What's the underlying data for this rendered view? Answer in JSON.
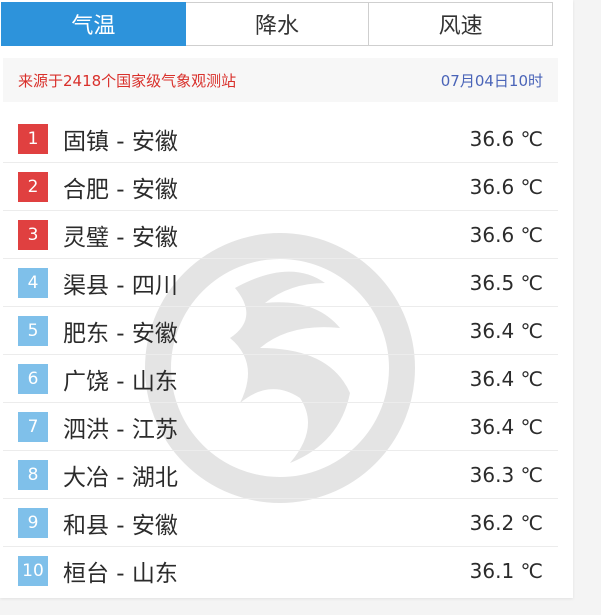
{
  "tabs": [
    {
      "label": "气温",
      "active": true
    },
    {
      "label": "降水",
      "active": false
    },
    {
      "label": "风速",
      "active": false
    }
  ],
  "info": {
    "source": "来源于2418个国家级气象观测站",
    "time": "07月04日10时"
  },
  "colors": {
    "accent": "#2d93db",
    "top3_badge": "#e04040",
    "other_badge": "#7fc0ea",
    "source_text": "#d9302b",
    "time_text": "#4a64b8"
  },
  "unit": "℃",
  "rows": [
    {
      "rank": "1",
      "name": "固镇 - 安徽",
      "temp": "36.6 ℃"
    },
    {
      "rank": "2",
      "name": "合肥 - 安徽",
      "temp": "36.6 ℃"
    },
    {
      "rank": "3",
      "name": "灵璧 - 安徽",
      "temp": "36.6 ℃"
    },
    {
      "rank": "4",
      "name": "渠县 - 四川",
      "temp": "36.5 ℃"
    },
    {
      "rank": "5",
      "name": "肥东 - 安徽",
      "temp": "36.4 ℃"
    },
    {
      "rank": "6",
      "name": "广饶 - 山东",
      "temp": "36.4 ℃"
    },
    {
      "rank": "7",
      "name": "泗洪 - 江苏",
      "temp": "36.4 ℃"
    },
    {
      "rank": "8",
      "name": "大冶 - 湖北",
      "temp": "36.3 ℃"
    },
    {
      "rank": "9",
      "name": "和县 - 安徽",
      "temp": "36.2 ℃"
    },
    {
      "rank": "10",
      "name": "桓台 - 山东",
      "temp": "36.1 ℃"
    }
  ]
}
